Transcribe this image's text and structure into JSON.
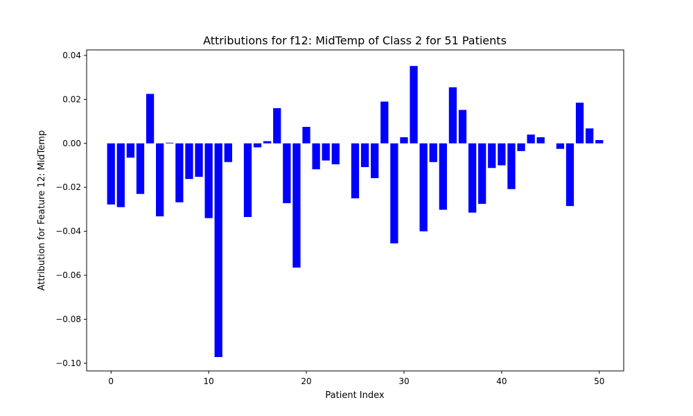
{
  "chart_data": {
    "type": "bar",
    "title": "Attributions for f12: MidTemp of Class 2 for 51 Patients",
    "xlabel": "Patient Index",
    "ylabel": "Attribution for Feature 12: MidTemp",
    "xlim": [
      -2.5,
      52.5
    ],
    "ylim": [
      -0.1035,
      0.0425
    ],
    "xticks": [
      0,
      10,
      20,
      30,
      40,
      50
    ],
    "xtick_labels": [
      "0",
      "10",
      "20",
      "30",
      "40",
      "50"
    ],
    "yticks": [
      0.04,
      0.02,
      0.0,
      -0.02,
      -0.04,
      -0.06,
      -0.08,
      -0.1
    ],
    "ytick_labels": [
      "0.04",
      "0.02",
      "0.00",
      "−0.02",
      "−0.04",
      "−0.06",
      "−0.08",
      "−0.10"
    ],
    "bar_color": "#0000ff",
    "grid": false,
    "x": [
      0,
      1,
      2,
      3,
      4,
      5,
      6,
      7,
      8,
      9,
      10,
      11,
      12,
      13,
      14,
      15,
      16,
      17,
      18,
      19,
      20,
      21,
      22,
      23,
      24,
      25,
      26,
      27,
      28,
      29,
      30,
      31,
      32,
      33,
      34,
      35,
      36,
      37,
      38,
      39,
      40,
      41,
      42,
      43,
      44,
      45,
      46,
      47,
      48,
      49,
      50
    ],
    "values": [
      -0.0278,
      -0.029,
      -0.0065,
      -0.023,
      0.0225,
      -0.0332,
      0.0003,
      -0.0268,
      -0.0162,
      -0.0152,
      -0.034,
      -0.0972,
      -0.0085,
      0.0,
      -0.0335,
      -0.0018,
      0.001,
      0.016,
      -0.0272,
      -0.0565,
      0.0075,
      -0.0118,
      -0.0078,
      -0.0095,
      0.0,
      -0.025,
      -0.0108,
      -0.0158,
      0.019,
      -0.0455,
      0.0028,
      0.0352,
      -0.04,
      -0.0085,
      -0.0302,
      0.0255,
      0.0152,
      -0.0315,
      -0.0275,
      -0.0112,
      -0.01,
      -0.0208,
      -0.0035,
      0.004,
      0.0028,
      0.0,
      -0.0025,
      -0.0285,
      0.0185,
      0.0068,
      0.0015
    ]
  }
}
